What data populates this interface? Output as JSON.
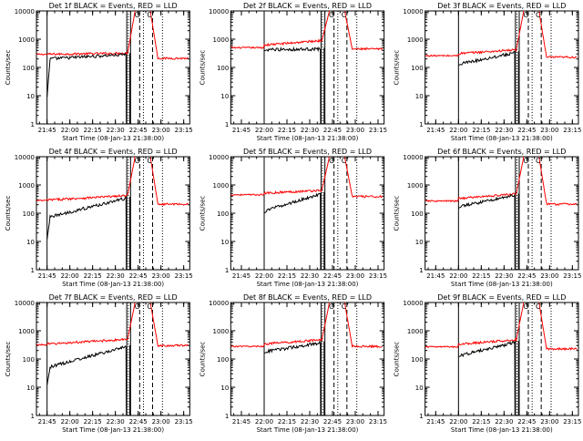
{
  "page": {
    "title": ""
  },
  "colors": {
    "events": "#000000",
    "lld": "#ff0000",
    "background": "#ffffff",
    "axes": "#000000"
  },
  "chart_data": [
    {
      "type": "line",
      "title": "Det 1f BLACK = Events, RED = LLD",
      "xlabel": "Start Time (08-Jan-13 21:38:00)",
      "ylabel": "Counts/sec",
      "yscale": "log",
      "ylim": [
        1,
        10000
      ],
      "xtick_labels": [
        "21:45",
        "22:00",
        "22:15",
        "22:30",
        "22:45",
        "23:00",
        "23:15"
      ],
      "xlim_minutes": [
        0,
        101
      ],
      "ytick_labels": [
        "1",
        "10",
        "100",
        "1000",
        "10000"
      ],
      "series": [
        {
          "name": "Events",
          "color": "#000000"
        },
        {
          "name": "LLD",
          "color": "#ff0000"
        }
      ],
      "events_start": 7,
      "events_base": [
        9,
        200
      ],
      "events_end": [
        60,
        290
      ],
      "lld_start": [
        0,
        290
      ],
      "lld_end": [
        60,
        320
      ],
      "post_level": 210,
      "peak": 10000,
      "solid_vlines": [
        7,
        59.5,
        62
      ],
      "dashed_vlines": [
        68,
        76.5
      ],
      "dotted_vlines": [
        60.5,
        70.5,
        83
      ],
      "markers": [
        "O",
        "C"
      ]
    },
    {
      "type": "line",
      "title": "Det 2f BLACK = Events, RED = LLD",
      "xlabel": "Start Time (08-Jan-13 21:38:00)",
      "ylabel": "Counts/sec",
      "yscale": "log",
      "ylim": [
        1,
        10000
      ],
      "xtick_labels": [
        "21:45",
        "22:00",
        "22:15",
        "22:30",
        "22:45",
        "23:00",
        "23:15"
      ],
      "xlim_minutes": [
        0,
        101
      ],
      "ytick_labels": [
        "1",
        "10",
        "100",
        "1000",
        "10000"
      ],
      "series": [
        {
          "name": "Events",
          "color": "#000000"
        },
        {
          "name": "LLD",
          "color": "#ff0000"
        }
      ],
      "events_start": 22,
      "events_base": [
        380,
        430
      ],
      "events_end": [
        60,
        450
      ],
      "lld_start": [
        0,
        500
      ],
      "lld_end": [
        60,
        900
      ],
      "post_level": 450,
      "peak": 10000,
      "solid_vlines": [
        22,
        59.5,
        62
      ],
      "dashed_vlines": [
        68,
        76.5
      ],
      "dotted_vlines": [
        60.5,
        70.5,
        83
      ],
      "markers": [
        "O",
        "C"
      ]
    },
    {
      "type": "line",
      "title": "Det 3f BLACK = Events, RED = LLD",
      "xlabel": "Start Time (08-Jan-13 21:38:00)",
      "ylabel": "Counts/sec",
      "yscale": "log",
      "ylim": [
        1,
        10000
      ],
      "xtick_labels": [
        "21:45",
        "22:00",
        "22:15",
        "22:30",
        "22:45",
        "23:00",
        "23:15"
      ],
      "xlim_minutes": [
        0,
        101
      ],
      "ytick_labels": [
        "1",
        "10",
        "100",
        "1000",
        "10000"
      ],
      "series": [
        {
          "name": "Events",
          "color": "#000000"
        },
        {
          "name": "LLD",
          "color": "#ff0000"
        }
      ],
      "events_start": 22,
      "events_base": [
        120,
        130
      ],
      "events_end": [
        60,
        340
      ],
      "lld_start": [
        0,
        260
      ],
      "lld_end": [
        60,
        420
      ],
      "post_level": 230,
      "peak": 10000,
      "solid_vlines": [
        22,
        59.5,
        62
      ],
      "dashed_vlines": [
        68,
        76.5
      ],
      "dotted_vlines": [
        60.5,
        70.5,
        83
      ],
      "markers": [
        "O",
        "C"
      ]
    },
    {
      "type": "line",
      "title": "Det 4f BLACK = Events, RED = LLD",
      "xlabel": "Start Time (08-Jan-13 21:38:00)",
      "ylabel": "Counts/sec",
      "yscale": "log",
      "ylim": [
        1,
        10000
      ],
      "xtick_labels": [
        "21:45",
        "22:00",
        "22:15",
        "22:30",
        "22:45",
        "23:00",
        "23:15"
      ],
      "xlim_minutes": [
        0,
        101
      ],
      "ytick_labels": [
        "1",
        "10",
        "100",
        "1000",
        "10000"
      ],
      "series": [
        {
          "name": "Events",
          "color": "#000000"
        },
        {
          "name": "LLD",
          "color": "#ff0000"
        }
      ],
      "events_start": 7,
      "events_base": [
        12,
        70
      ],
      "events_end": [
        60,
        350
      ],
      "lld_start": [
        0,
        280
      ],
      "lld_end": [
        60,
        420
      ],
      "post_level": 210,
      "peak": 10000,
      "solid_vlines": [
        7,
        59.5,
        62
      ],
      "dashed_vlines": [
        68,
        76.5
      ],
      "dotted_vlines": [
        60.5,
        70.5,
        83
      ],
      "markers": [
        "O",
        "C"
      ]
    },
    {
      "type": "line",
      "title": "Det 5f BLACK = Events, RED = LLD",
      "xlabel": "Start Time (08-Jan-13 21:38:00)",
      "ylabel": "Counts/sec",
      "yscale": "log",
      "ylim": [
        1,
        10000
      ],
      "xtick_labels": [
        "21:45",
        "22:00",
        "22:15",
        "22:30",
        "22:45",
        "23:00",
        "23:15"
      ],
      "xlim_minutes": [
        0,
        101
      ],
      "ytick_labels": [
        "1",
        "10",
        "100",
        "1000",
        "10000"
      ],
      "series": [
        {
          "name": "Events",
          "color": "#000000"
        },
        {
          "name": "LLD",
          "color": "#ff0000"
        }
      ],
      "events_start": 22,
      "events_base": [
        100,
        120
      ],
      "events_end": [
        60,
        500
      ],
      "lld_start": [
        0,
        450
      ],
      "lld_end": [
        60,
        650
      ],
      "post_level": 390,
      "peak": 10000,
      "solid_vlines": [
        22,
        59.5,
        62
      ],
      "dashed_vlines": [
        68,
        76.5
      ],
      "dotted_vlines": [
        60.5,
        70.5,
        83
      ],
      "markers": [
        "O",
        "C"
      ]
    },
    {
      "type": "line",
      "title": "Det 6f BLACK = Events, RED = LLD",
      "xlabel": "Start Time (08-Jan-13 21:38:00)",
      "ylabel": "Counts/sec",
      "yscale": "log",
      "ylim": [
        1,
        10000
      ],
      "xtick_labels": [
        "21:45",
        "22:00",
        "22:15",
        "22:30",
        "22:45",
        "23:00",
        "23:15"
      ],
      "xlim_minutes": [
        0,
        101
      ],
      "ytick_labels": [
        "1",
        "10",
        "100",
        "1000",
        "10000"
      ],
      "series": [
        {
          "name": "Events",
          "color": "#000000"
        },
        {
          "name": "LLD",
          "color": "#ff0000"
        }
      ],
      "events_start": 22,
      "events_base": [
        150,
        170
      ],
      "events_end": [
        60,
        450
      ],
      "lld_start": [
        0,
        270
      ],
      "lld_end": [
        60,
        480
      ],
      "post_level": 210,
      "peak": 10000,
      "solid_vlines": [
        22,
        59.5,
        62
      ],
      "dashed_vlines": [
        68,
        76.5
      ],
      "dotted_vlines": [
        60.5,
        70.5,
        83
      ],
      "markers": [
        "O",
        "C"
      ]
    },
    {
      "type": "line",
      "title": "Det 7f BLACK = Events, RED = LLD",
      "xlabel": "Start Time (08-Jan-13 21:38:00)",
      "ylabel": "Counts/sec",
      "yscale": "log",
      "ylim": [
        1,
        10000
      ],
      "xtick_labels": [
        "21:45",
        "22:00",
        "22:15",
        "22:30",
        "22:45",
        "23:00",
        "23:15"
      ],
      "xlim_minutes": [
        0,
        101
      ],
      "ytick_labels": [
        "1",
        "10",
        "100",
        "1000",
        "10000"
      ],
      "series": [
        {
          "name": "Events",
          "color": "#000000"
        },
        {
          "name": "LLD",
          "color": "#ff0000"
        }
      ],
      "events_start": 7,
      "events_base": [
        12,
        50
      ],
      "events_end": [
        60,
        280
      ],
      "lld_start": [
        0,
        320
      ],
      "lld_end": [
        60,
        500
      ],
      "post_level": 300,
      "peak": 10000,
      "solid_vlines": [
        7,
        59.5,
        62
      ],
      "dashed_vlines": [
        68,
        76.5
      ],
      "dotted_vlines": [
        60.5,
        70.5,
        83
      ],
      "markers": [
        "O",
        "C"
      ]
    },
    {
      "type": "line",
      "title": "Det 8f BLACK = Events, RED = LLD",
      "xlabel": "Start Time (08-Jan-13 21:38:00)",
      "ylabel": "Counts/sec",
      "yscale": "log",
      "ylim": [
        1,
        10000
      ],
      "xtick_labels": [
        "21:45",
        "22:00",
        "22:15",
        "22:30",
        "22:45",
        "23:00",
        "23:15"
      ],
      "xlim_minutes": [
        0,
        101
      ],
      "ytick_labels": [
        "1",
        "10",
        "100",
        "1000",
        "10000"
      ],
      "series": [
        {
          "name": "Events",
          "color": "#000000"
        },
        {
          "name": "LLD",
          "color": "#ff0000"
        }
      ],
      "events_start": 22,
      "events_base": [
        160,
        180
      ],
      "events_end": [
        60,
        380
      ],
      "lld_start": [
        0,
        280
      ],
      "lld_end": [
        60,
        480
      ],
      "post_level": 280,
      "peak": 10000,
      "solid_vlines": [
        22,
        59.5,
        62
      ],
      "dashed_vlines": [
        68,
        76.5
      ],
      "dotted_vlines": [
        60.5,
        70.5,
        83
      ],
      "markers": [
        "O",
        "C"
      ]
    },
    {
      "type": "line",
      "title": "Det 9f BLACK = Events, RED = LLD",
      "xlabel": "Start Time (08-Jan-13 21:38:00)",
      "ylabel": "Counts/sec",
      "yscale": "log",
      "ylim": [
        1,
        10000
      ],
      "xtick_labels": [
        "21:45",
        "22:00",
        "22:15",
        "22:30",
        "22:45",
        "23:00",
        "23:15"
      ],
      "xlim_minutes": [
        0,
        101
      ],
      "ytick_labels": [
        "1",
        "10",
        "100",
        "1000",
        "10000"
      ],
      "series": [
        {
          "name": "Events",
          "color": "#000000"
        },
        {
          "name": "LLD",
          "color": "#ff0000"
        }
      ],
      "events_start": 22,
      "events_base": [
        120,
        130
      ],
      "events_end": [
        60,
        400
      ],
      "lld_start": [
        0,
        270
      ],
      "lld_end": [
        60,
        480
      ],
      "post_level": 230,
      "peak": 10000,
      "solid_vlines": [
        22,
        59.5,
        62
      ],
      "dashed_vlines": [
        68,
        76.5
      ],
      "dotted_vlines": [
        60.5,
        70.5,
        83
      ],
      "markers": [
        "O",
        "C"
      ]
    }
  ]
}
